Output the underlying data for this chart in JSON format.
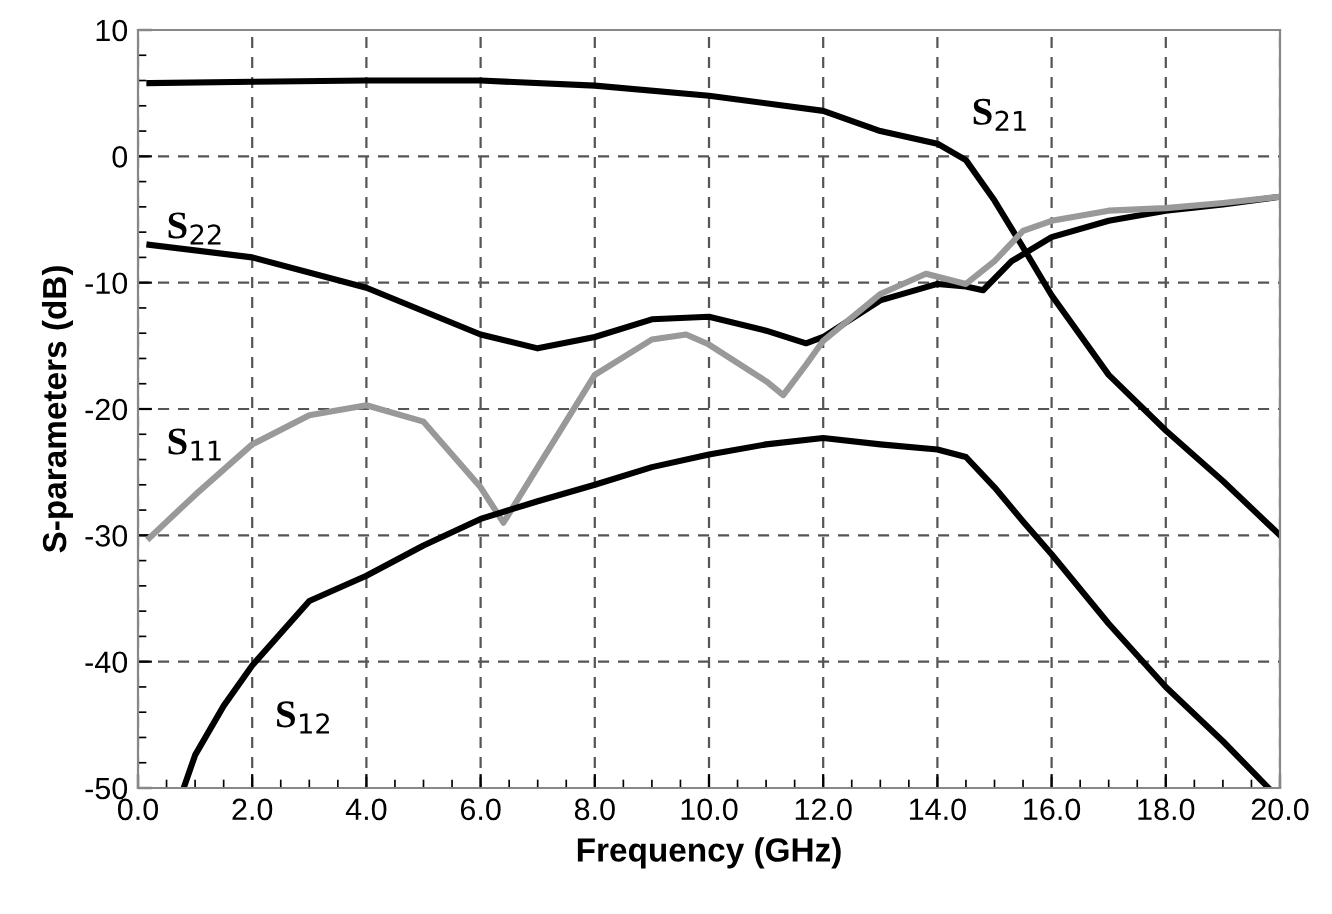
{
  "chart_data": {
    "type": "line",
    "xlabel": "Frequency (GHz)",
    "ylabel": "S-parameters (dB)",
    "xlim": [
      0,
      20
    ],
    "ylim": [
      -50,
      10
    ],
    "xticks": [
      {
        "value": 0,
        "label": "0.0"
      },
      {
        "value": 2,
        "label": "2.0"
      },
      {
        "value": 4,
        "label": "4.0"
      },
      {
        "value": 6,
        "label": "6.0"
      },
      {
        "value": 8,
        "label": "8.0"
      },
      {
        "value": 10,
        "label": "10.0"
      },
      {
        "value": 12,
        "label": "12.0"
      },
      {
        "value": 14,
        "label": "14.0"
      },
      {
        "value": 16,
        "label": "16.0"
      },
      {
        "value": 18,
        "label": "18.0"
      },
      {
        "value": 20,
        "label": "20.0"
      }
    ],
    "yticks": [
      10,
      0,
      -10,
      -20,
      -30,
      -40,
      -50
    ],
    "grid": true,
    "legend": false,
    "marker": "none",
    "line_style": "solid",
    "series": [
      {
        "color": "#000000",
        "x": [
          0.2,
          2,
          4,
          6,
          8,
          10,
          12,
          13,
          14,
          14.5,
          15,
          15.5,
          16,
          17,
          18,
          19,
          20
        ],
        "values": [
          5.8,
          5.9,
          6.0,
          6.0,
          5.6,
          4.8,
          3.6,
          2.0,
          1.0,
          -0.3,
          -3.5,
          -7.2,
          -11,
          -17.3,
          -21.7,
          -25.7,
          -30
        ]
      },
      {
        "color": "#000000",
        "x": [
          0.2,
          2,
          4,
          6,
          7,
          8,
          9,
          10,
          11,
          11.7,
          12,
          13,
          14,
          14.5,
          14.8,
          15.3,
          16,
          17,
          18,
          19,
          20
        ],
        "values": [
          -7.0,
          -8.0,
          -10.4,
          -14.1,
          -15.2,
          -14.3,
          -12.9,
          -12.7,
          -13.8,
          -14.8,
          -14.3,
          -11.4,
          -10.1,
          -10.3,
          -10.6,
          -8.3,
          -6.4,
          -5.1,
          -4.3,
          -3.8,
          -3.2
        ]
      },
      {
        "color": "#999999",
        "x": [
          0.2,
          1,
          2,
          3,
          4,
          5,
          6,
          6.4,
          7,
          8,
          9,
          9.6,
          10,
          11,
          11.3,
          11.7,
          12,
          13,
          13.8,
          14.5,
          15,
          15.5,
          16,
          17,
          18,
          19,
          20
        ],
        "values": [
          -30.2,
          -26.8,
          -22.8,
          -20.5,
          -19.7,
          -21,
          -26.2,
          -29,
          -24.6,
          -17.3,
          -14.5,
          -14.1,
          -14.9,
          -17.8,
          -18.9,
          -16.5,
          -14.6,
          -10.9,
          -9.3,
          -10.1,
          -8.3,
          -5.9,
          -5.1,
          -4.3,
          -4.1,
          -3.7,
          -3.2
        ]
      },
      {
        "color": "#000000",
        "x": [
          0.8,
          1,
          1.5,
          2,
          3,
          4,
          5,
          6,
          7,
          8,
          9,
          10,
          11,
          12,
          13,
          14,
          14.5,
          15,
          15.5,
          16,
          17,
          18,
          19,
          19.8
        ],
        "values": [
          -50,
          -47.4,
          -43.5,
          -40.3,
          -35.2,
          -33.2,
          -30.8,
          -28.7,
          -27.3,
          -26,
          -24.6,
          -23.6,
          -22.8,
          -22.3,
          -22.8,
          -23.2,
          -23.8,
          -26.2,
          -28.9,
          -31.5,
          -37,
          -42,
          -46.3,
          -50
        ]
      }
    ],
    "annotations": [
      "S$_{21}$",
      "S$_{22}$",
      "S$_{11}$",
      "S$_{12}$"
    ]
  }
}
